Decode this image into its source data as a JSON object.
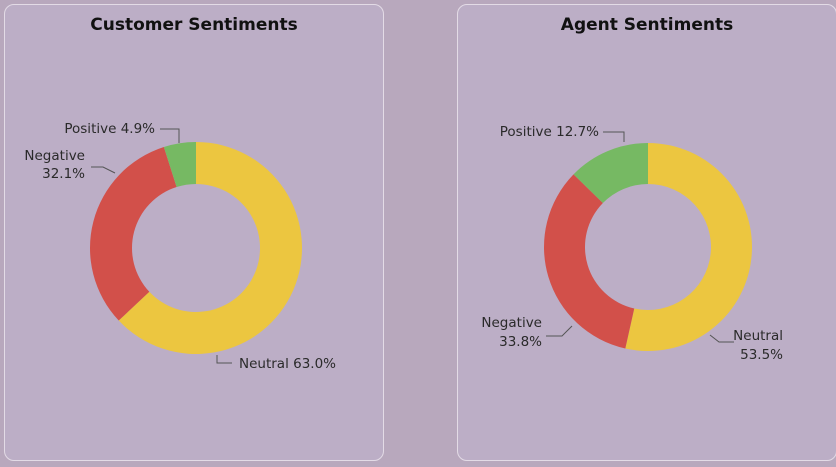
{
  "colors": {
    "Neutral": "#ecc640",
    "Negative": "#d2504a",
    "Positive": "#76b963"
  },
  "chart_data": [
    {
      "type": "pie",
      "title": "Customer Sentiments",
      "donut": true,
      "categories": [
        "Neutral",
        "Negative",
        "Positive"
      ],
      "values": [
        63.0,
        32.1,
        4.9
      ],
      "labels": {
        "Neutral": "Neutral 63.0%",
        "Negative": "Negative",
        "NegativePct": "32.1%",
        "Positive": "Positive 4.9%"
      }
    },
    {
      "type": "pie",
      "title": "Agent Sentiments",
      "donut": true,
      "categories": [
        "Neutral",
        "Negative",
        "Positive"
      ],
      "values": [
        53.5,
        33.8,
        12.7
      ],
      "labels": {
        "Neutral": "Neutral",
        "NeutralPct": "53.5%",
        "Negative": "Negative",
        "NegativePct": "33.8%",
        "Positive": "Positive 12.7%"
      }
    }
  ]
}
